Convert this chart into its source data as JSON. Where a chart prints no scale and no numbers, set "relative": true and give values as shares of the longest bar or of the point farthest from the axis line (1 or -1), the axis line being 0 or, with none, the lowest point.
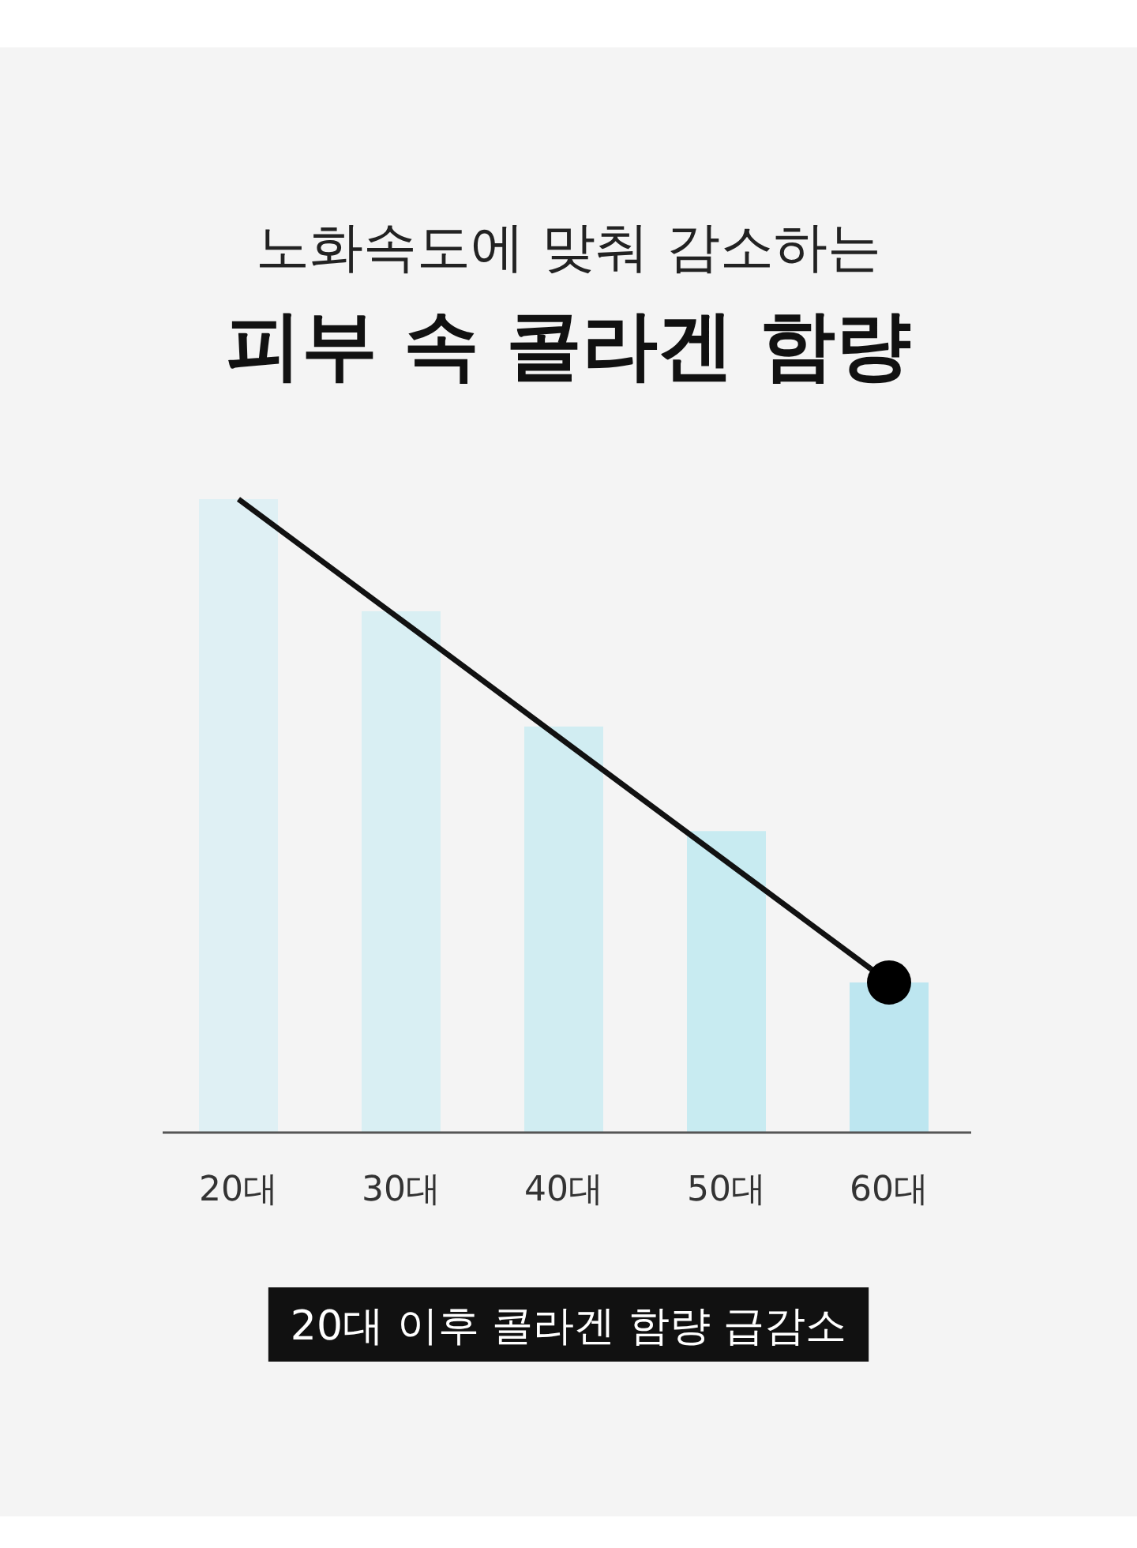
{
  "chart_data": {
    "type": "bar",
    "subtitle": "노화속도에 맞춰 감소하는",
    "title": "피부 속 콜라겐 함량",
    "categories": [
      "20대",
      "30대",
      "40대",
      "50대",
      "60대"
    ],
    "relative": true,
    "series": [
      {
        "values": [
          1,
          0.823,
          0.641,
          0.476,
          0.237
        ],
        "colors": [
          "#dff0f4",
          "#d9eff3",
          "#d1edf2",
          "#c8ebf1",
          "#bde6f0"
        ]
      },
      {
        "type": "line",
        "x": [
          "20대",
          "60대"
        ],
        "values": [
          1,
          0.237
        ],
        "color": "#111111"
      },
      {
        "type": "scatter",
        "x": [
          "60대"
        ],
        "values": [
          0.237
        ],
        "color": "#000000"
      }
    ],
    "annotations": [
      "20대 이후 콜라겐 함량 급감소"
    ]
  }
}
